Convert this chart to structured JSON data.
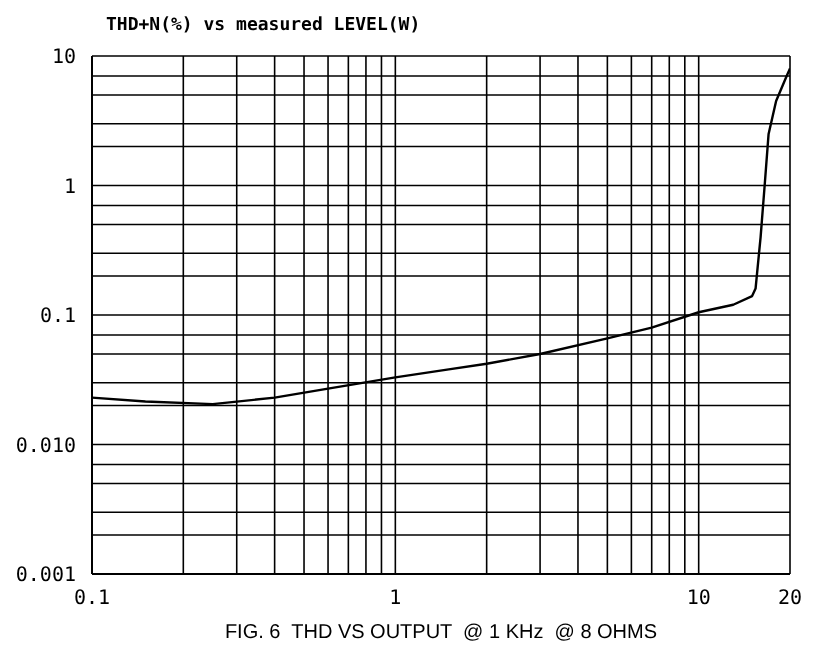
{
  "chart_data": {
    "type": "line",
    "title": "THD+N(%) vs measured LEVEL(W)",
    "annotations": [
      "FIG. 6  THD VS OUTPUT  @ 1 KHz  @ 8 OHMS"
    ],
    "log": "xy",
    "grid": true,
    "marker": "none",
    "line_style": "solid",
    "x": [
      0.1,
      0.15,
      0.25,
      0.4,
      0.6,
      1,
      1.5,
      2,
      3,
      5,
      7,
      10,
      13,
      15,
      15.4,
      16,
      16.5,
      17,
      18,
      19.5,
      20
    ],
    "series": [
      {
        "color": "#000000",
        "values": [
          0.023,
          0.0215,
          0.0205,
          0.023,
          0.027,
          0.033,
          0.038,
          0.042,
          0.05,
          0.066,
          0.08,
          0.105,
          0.12,
          0.14,
          0.16,
          0.4,
          1.0,
          2.5,
          4.5,
          7,
          8
        ]
      }
    ],
    "xlim": [
      0.1,
      20
    ],
    "ylim": [
      0.001,
      10
    ],
    "xticks": [
      0.1,
      {
        "value": 0.2,
        "label": null
      },
      {
        "value": 0.3,
        "label": null
      },
      {
        "value": 0.4,
        "label": null
      },
      {
        "value": 0.5,
        "label": null
      },
      {
        "value": 0.6,
        "label": null
      },
      {
        "value": 0.7,
        "label": null
      },
      {
        "value": 0.8,
        "label": null
      },
      {
        "value": 0.9,
        "label": null
      },
      1,
      {
        "value": 2,
        "label": null
      },
      {
        "value": 3,
        "label": null
      },
      {
        "value": 4,
        "label": null
      },
      {
        "value": 5,
        "label": null
      },
      {
        "value": 6,
        "label": null
      },
      {
        "value": 7,
        "label": null
      },
      {
        "value": 8,
        "label": null
      },
      {
        "value": 9,
        "label": null
      },
      10,
      20
    ],
    "yticks": [
      0.001,
      {
        "value": 0.002,
        "label": null
      },
      {
        "value": 0.003,
        "label": null
      },
      {
        "value": 0.005,
        "label": null
      },
      {
        "value": 0.007,
        "label": null
      },
      {
        "value": 0.01,
        "label": "0.010"
      },
      {
        "value": 0.02,
        "label": null
      },
      {
        "value": 0.03,
        "label": null
      },
      {
        "value": 0.05,
        "label": null
      },
      {
        "value": 0.07,
        "label": null
      },
      0.1,
      {
        "value": 0.2,
        "label": null
      },
      {
        "value": 0.3,
        "label": null
      },
      {
        "value": 0.5,
        "label": null
      },
      {
        "value": 0.7,
        "label": null
      },
      1,
      {
        "value": 2,
        "label": null
      },
      {
        "value": 3,
        "label": null
      },
      {
        "value": 5,
        "label": null
      },
      {
        "value": 7,
        "label": null
      },
      10
    ]
  }
}
